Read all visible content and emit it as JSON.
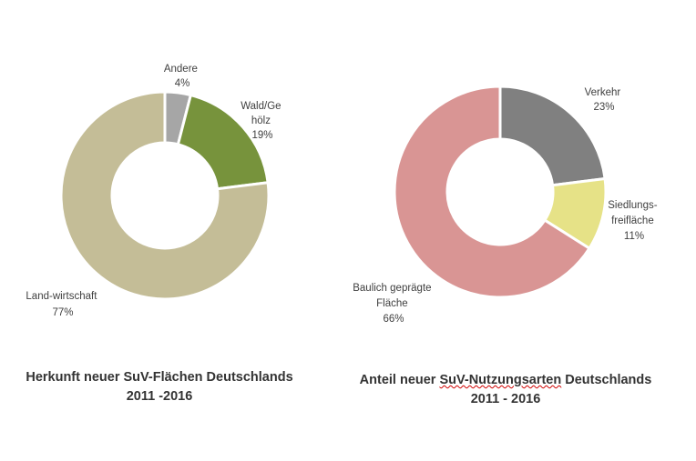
{
  "colors": {
    "andere": "#a6a6a6",
    "wald": "#77933c",
    "landwirtschaft": "#c4bd97",
    "verkehr": "#808080",
    "siedlungsfreiflaeche": "#e6e287",
    "baulich": "#d99594",
    "separator": "#ffffff",
    "title_text": "#333333",
    "label_text": "#404040"
  },
  "chart_data": [
    {
      "type": "pie",
      "variant": "donut",
      "title": [
        "Herkunft neuer SuV-Flächen Deutschlands",
        "2011 -2016"
      ],
      "slices": [
        {
          "key": "andere",
          "label": [
            "Andere"
          ],
          "value_label": "4%",
          "value": 4,
          "color": "#a6a6a6"
        },
        {
          "key": "wald",
          "label": [
            "Wald/Ge",
            "hölz"
          ],
          "value_label": "19%",
          "value": 19,
          "color": "#77933c"
        },
        {
          "key": "landwirtschaft",
          "label": [
            "Land-wirtschaft"
          ],
          "value_label": "77%",
          "value": 77,
          "color": "#c4bd97"
        }
      ]
    },
    {
      "type": "pie",
      "variant": "donut",
      "title": [
        "Anteil neuer SuV-Nutzungsarten Deutschlands",
        "2011 - 2016"
      ],
      "slices": [
        {
          "key": "verkehr",
          "label": [
            "Verkehr"
          ],
          "value_label": "23%",
          "value": 23,
          "color": "#808080"
        },
        {
          "key": "siedlungsfreiflaeche",
          "label": [
            "Siedlungs-",
            "freifläche"
          ],
          "value_label": "11%",
          "value": 11,
          "color": "#e6e287"
        },
        {
          "key": "baulich",
          "label": [
            "Baulich geprägte",
            "Fläche"
          ],
          "value_label": "66%",
          "value": 66,
          "color": "#d99594"
        }
      ]
    }
  ]
}
